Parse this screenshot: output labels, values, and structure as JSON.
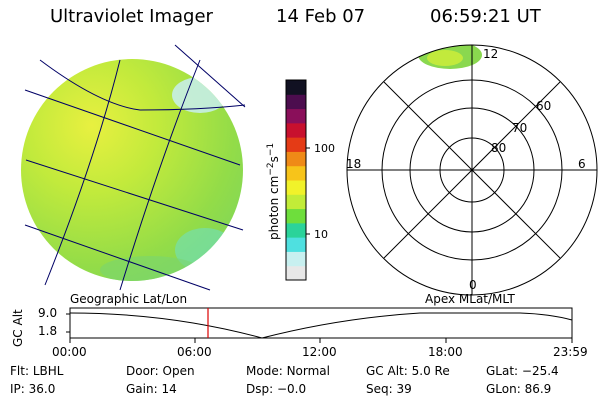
{
  "header": {
    "instrument": "Ultraviolet Imager",
    "date": "14 Feb 07",
    "time": "06:59:21 UT"
  },
  "colorbar": {
    "unit_main": "photon cm",
    "unit_exp1": "−2",
    "unit_mid": "s",
    "unit_exp2": "−1",
    "tick_100": "100",
    "tick_10": "10",
    "colors": [
      "#e8e8e8",
      "#c8f0f0",
      "#4fe0e0",
      "#2bd39a",
      "#6ede3c",
      "#c2ec38",
      "#f1f22a",
      "#f7c41a",
      "#ef8a17",
      "#e43b16",
      "#c8102e",
      "#8a0f5a",
      "#4c0d4e",
      "#111122"
    ]
  },
  "polar_plot": {
    "mlt_labels": {
      "top": "12",
      "left": "18",
      "right": "6",
      "bottom": "0"
    },
    "lat_labels": [
      "60",
      "70",
      "80"
    ]
  },
  "altitude_panel": {
    "left_title": "Geographic Lat/Lon",
    "right_title": "Apex MLat/MLT",
    "y_label": "GC Alt",
    "y_ticks": [
      "9.0",
      "1.8"
    ],
    "x_ticks": [
      "00:00",
      "06:00",
      "12:00",
      "18:00",
      "23:59"
    ],
    "cursor_color": "#dd0000"
  },
  "status": {
    "flt_label": "Flt:",
    "flt_value": "LBHL",
    "door_label": "Door:",
    "door_value": "Open",
    "mode_label": "Mode:",
    "mode_value": "Normal",
    "gcalt_label": "GC Alt:",
    "gcalt_value": "5.0 Re",
    "glat_label": "GLat:",
    "glat_value": "−25.4",
    "ip_label": "IP:",
    "ip_value": "36.0",
    "gain_label": "Gain:",
    "gain_value": "14",
    "dsp_label": "Dsp:",
    "dsp_value": "−0.0",
    "seq_label": "Seq:",
    "seq_value": "39",
    "glon_label": "GLon:",
    "glon_value": "86.9"
  }
}
